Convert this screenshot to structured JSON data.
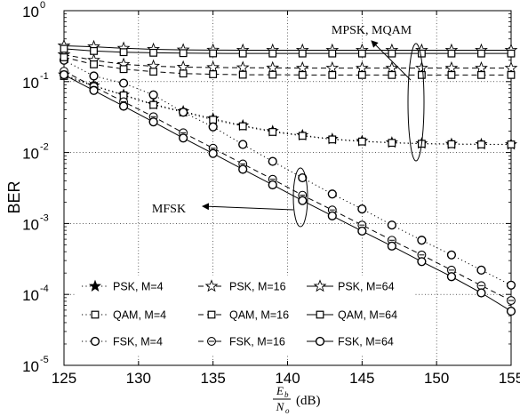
{
  "chart_data": {
    "type": "line",
    "title": "",
    "ylabel": "BER",
    "xlabel_main": "E",
    "xlabel_main_sub": "b",
    "xlabel_den": "N",
    "xlabel_den_sub": "o",
    "xlabel_unit": "(dB)",
    "xlim": [
      125,
      155
    ],
    "ylim": [
      1e-05,
      1
    ],
    "yscale": "log",
    "grid": true,
    "xticks": [
      "125",
      "130",
      "135",
      "140",
      "145",
      "150",
      "155"
    ],
    "yticks": [
      {
        "base": "10",
        "exp": "0"
      },
      {
        "base": "10",
        "exp": "-1"
      },
      {
        "base": "10",
        "exp": "-2"
      },
      {
        "base": "10",
        "exp": "-3"
      },
      {
        "base": "10",
        "exp": "-4"
      },
      {
        "base": "10",
        "exp": "-5"
      }
    ],
    "x": [
      125,
      127,
      129,
      131,
      133,
      135,
      137,
      139,
      141,
      143,
      145,
      147,
      149,
      151,
      153,
      155
    ],
    "series": [
      {
        "name": "PSK, M=4",
        "marker": "star-filled",
        "dash": "1.2,3.2",
        "values": [
          0.125,
          0.088,
          0.065,
          0.048,
          0.038,
          0.03,
          0.024,
          0.02,
          0.0175,
          0.0155,
          0.0145,
          0.0138,
          0.0134,
          0.0132,
          0.0131,
          0.013
        ]
      },
      {
        "name": "QAM, M=4",
        "marker": "square",
        "dash": "1.2,3.2",
        "values": [
          0.12,
          0.087,
          0.064,
          0.047,
          0.037,
          0.029,
          0.0235,
          0.0195,
          0.0172,
          0.0153,
          0.0143,
          0.0137,
          0.0133,
          0.0131,
          0.013,
          0.013
        ]
      },
      {
        "name": "FSK, M=4",
        "marker": "circle",
        "dash": "1.2,3.2",
        "values": [
          0.2,
          0.12,
          0.095,
          0.065,
          0.037,
          0.023,
          0.013,
          0.0075,
          0.0044,
          0.0026,
          0.0016,
          0.00095,
          0.00058,
          0.00036,
          0.00022,
          0.000135
        ]
      },
      {
        "name": "PSK, M=16",
        "marker": "star",
        "dash": "6,4",
        "values": [
          0.24,
          0.2,
          0.175,
          0.165,
          0.16,
          0.158,
          0.157,
          0.156,
          0.155,
          0.155,
          0.155,
          0.155,
          0.155,
          0.155,
          0.155,
          0.155
        ]
      },
      {
        "name": "QAM, M=16",
        "marker": "square",
        "dash": "6,4",
        "values": [
          0.22,
          0.175,
          0.15,
          0.138,
          0.13,
          0.127,
          0.125,
          0.125,
          0.124,
          0.124,
          0.124,
          0.124,
          0.124,
          0.124,
          0.124,
          0.124
        ]
      },
      {
        "name": "FSK, M=16",
        "marker": "circle-dash",
        "dash": "6,4",
        "values": [
          0.14,
          0.085,
          0.052,
          0.032,
          0.019,
          0.0115,
          0.0069,
          0.0042,
          0.0025,
          0.00155,
          0.00095,
          0.00058,
          0.00036,
          0.00022,
          0.000133,
          8.2e-05
        ]
      },
      {
        "name": "PSK, M=64",
        "marker": "star",
        "dash": "",
        "values": [
          0.32,
          0.31,
          0.295,
          0.285,
          0.28,
          0.278,
          0.277,
          0.277,
          0.277,
          0.277,
          0.277,
          0.277,
          0.277,
          0.277,
          0.277,
          0.277
        ]
      },
      {
        "name": "QAM, M=64",
        "marker": "square",
        "dash": "",
        "values": [
          0.29,
          0.27,
          0.26,
          0.255,
          0.252,
          0.25,
          0.249,
          0.249,
          0.249,
          0.249,
          0.249,
          0.249,
          0.249,
          0.249,
          0.249,
          0.249
        ]
      },
      {
        "name": "FSK, M=64",
        "marker": "circle",
        "dash": "",
        "values": [
          0.125,
          0.075,
          0.045,
          0.027,
          0.016,
          0.0097,
          0.0058,
          0.0035,
          0.0021,
          0.00128,
          0.00078,
          0.00048,
          0.00029,
          0.000178,
          0.000105,
          5.8e-05
        ]
      }
    ],
    "annotations": [
      {
        "text": "MPSK, MQAM",
        "points_to": "PSK/QAM curves near 149 dB"
      },
      {
        "text": "MFSK",
        "points_to": "FSK curves near 141 dB"
      }
    ],
    "legend_position": "lower-left"
  }
}
